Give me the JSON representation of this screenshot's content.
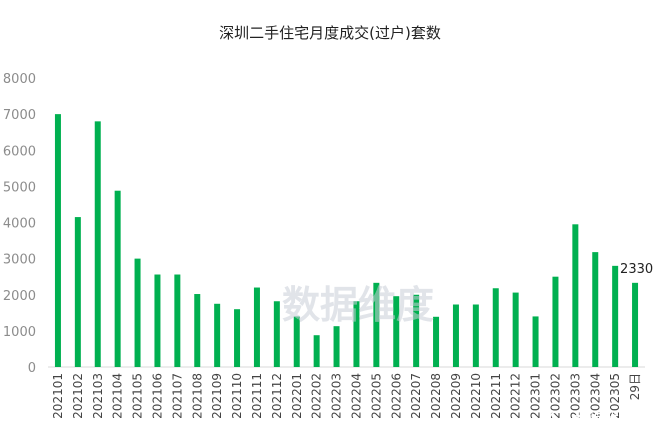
{
  "chart_data": {
    "type": "bar",
    "title": "深圳二手住宅月度成交(过户)套数",
    "categories": [
      "202101",
      "202102",
      "202103",
      "202104",
      "202105",
      "202106",
      "202107",
      "202108",
      "202109",
      "202110",
      "202111",
      "202112",
      "202201",
      "202202",
      "202203",
      "202204",
      "202205",
      "202206",
      "202207",
      "202208",
      "202209",
      "202210",
      "202211",
      "202212",
      "202301",
      "202302",
      "202303",
      "202304",
      "202305",
      "29日"
    ],
    "values": [
      7000,
      4150,
      6800,
      4880,
      3000,
      2560,
      2560,
      2020,
      1750,
      1600,
      2200,
      1820,
      1400,
      880,
      1130,
      1820,
      2330,
      1960,
      2000,
      1390,
      1730,
      1730,
      2180,
      2060,
      1400,
      2500,
      3950,
      3180,
      2800,
      2330
    ],
    "data_labels": [
      {
        "index": 29,
        "text": "2330"
      }
    ],
    "ylim": [
      0,
      8000
    ],
    "yticks": [
      "0",
      "1000",
      "2000",
      "3000",
      "4000",
      "5000",
      "6000",
      "7000",
      "8000"
    ],
    "bar_color": "#00b050",
    "grid": false,
    "legend": "none"
  },
  "watermark": {
    "center_text": "数据维度",
    "corner_text": "数据维度",
    "corner_icon": "wechat-icon"
  }
}
